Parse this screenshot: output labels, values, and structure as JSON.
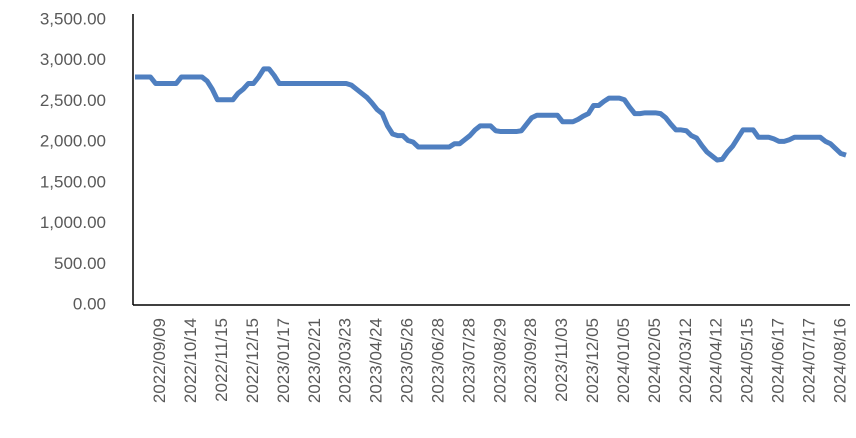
{
  "chart_data": {
    "type": "line",
    "categories": [
      null,
      null,
      null,
      null,
      null,
      "2022/09/09",
      null,
      null,
      null,
      null,
      null,
      "2022/10/14",
      null,
      null,
      null,
      null,
      null,
      "2022/11/15",
      null,
      null,
      null,
      null,
      null,
      "2022/12/15",
      null,
      null,
      null,
      null,
      null,
      "2023/01/17",
      null,
      null,
      null,
      null,
      null,
      "2023/02/21",
      null,
      null,
      null,
      null,
      null,
      "2023/03/23",
      null,
      null,
      null,
      null,
      null,
      "2023/04/24",
      null,
      null,
      null,
      null,
      null,
      "2023/05/26",
      null,
      null,
      null,
      null,
      null,
      "2023/06/28",
      null,
      null,
      null,
      null,
      null,
      "2023/07/28",
      null,
      null,
      null,
      null,
      null,
      "2023/08/29",
      null,
      null,
      null,
      null,
      null,
      "2023/09/28",
      null,
      null,
      null,
      null,
      null,
      "2023/11/03",
      null,
      null,
      null,
      null,
      null,
      "2023/12/05",
      null,
      null,
      null,
      null,
      null,
      "2024/01/05",
      null,
      null,
      null,
      null,
      null,
      "2024/02/05",
      null,
      null,
      null,
      null,
      null,
      "2024/03/12",
      null,
      null,
      null,
      null,
      null,
      "2024/04/12",
      null,
      null,
      null,
      null,
      null,
      "2024/05/15",
      null,
      null,
      null,
      null,
      null,
      "2024/06/17",
      null,
      null,
      null,
      null,
      null,
      "2024/07/17",
      null,
      null,
      null,
      null,
      null,
      "2024/08/16",
      null
    ],
    "series": [
      {
        "color": "#4f7fc0",
        "values": [
          2800,
          2800,
          2800,
          2800,
          2720,
          2720,
          2720,
          2720,
          2720,
          2800,
          2800,
          2800,
          2800,
          2800,
          2750,
          2650,
          2520,
          2520,
          2520,
          2520,
          2600,
          2650,
          2720,
          2720,
          2800,
          2900,
          2900,
          2820,
          2720,
          2720,
          2720,
          2720,
          2720,
          2720,
          2720,
          2720,
          2720,
          2720,
          2720,
          2720,
          2720,
          2720,
          2700,
          2650,
          2600,
          2550,
          2480,
          2400,
          2350,
          2200,
          2100,
          2080,
          2080,
          2020,
          2000,
          1940,
          1940,
          1940,
          1940,
          1940,
          1940,
          1940,
          1980,
          1980,
          2030,
          2080,
          2150,
          2200,
          2200,
          2200,
          2140,
          2130,
          2130,
          2130,
          2130,
          2140,
          2220,
          2300,
          2330,
          2330,
          2330,
          2330,
          2330,
          2250,
          2250,
          2250,
          2280,
          2320,
          2350,
          2450,
          2450,
          2500,
          2540,
          2540,
          2540,
          2520,
          2430,
          2350,
          2350,
          2360,
          2360,
          2360,
          2350,
          2300,
          2220,
          2150,
          2150,
          2140,
          2080,
          2050,
          1960,
          1880,
          1830,
          1780,
          1790,
          1880,
          1950,
          2050,
          2150,
          2150,
          2150,
          2060,
          2060,
          2060,
          2040,
          2010,
          2010,
          2030,
          2060,
          2060,
          2060,
          2060,
          2060,
          2060,
          2010,
          1980,
          1920,
          1860,
          1840
        ]
      }
    ],
    "ylim": [
      0,
      3500
    ],
    "yticks": [
      {
        "value": 0,
        "label": "0.00"
      },
      {
        "value": 500,
        "label": "500.00"
      },
      {
        "value": 1000,
        "label": "1,000.00"
      },
      {
        "value": 1500,
        "label": "1,500.00"
      },
      {
        "value": 2000,
        "label": "2,000.00"
      },
      {
        "value": 2500,
        "label": "2,500.00"
      },
      {
        "value": 3000,
        "label": "3,000.00"
      },
      {
        "value": 3500,
        "label": "3,500.00"
      }
    ],
    "grid": false
  }
}
